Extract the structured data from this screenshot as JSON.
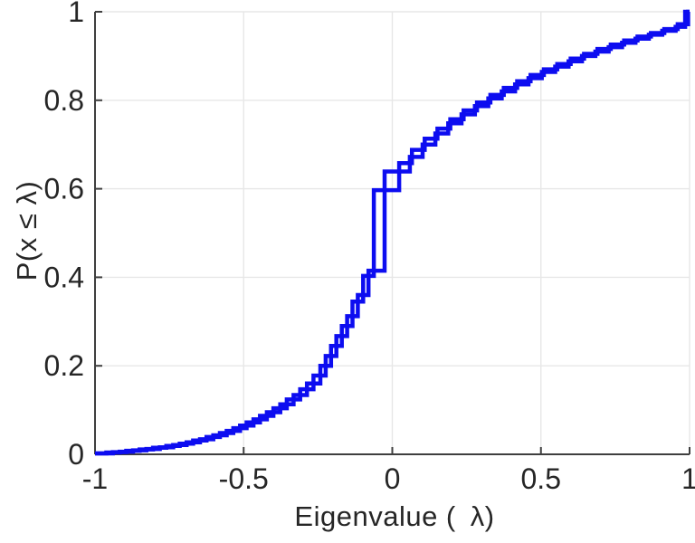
{
  "chart_data": {
    "type": "line",
    "subtype": "empirical-cdf-stairstep",
    "title": "",
    "xlabel": "Eigenvalue ( λ)",
    "ylabel": "P(x ≤ λ)",
    "xlim": [
      -1,
      1
    ],
    "ylim": [
      0,
      1
    ],
    "grid": true,
    "legend": "none",
    "x_ticks": [
      -1,
      -0.5,
      0,
      0.5,
      1
    ],
    "x_tick_labels": [
      "-1",
      "-0.5",
      "0",
      "0.5",
      "1"
    ],
    "y_ticks": [
      0,
      0.2,
      0.4,
      0.6,
      0.8,
      1
    ],
    "y_tick_labels": [
      "0",
      "0.2",
      "0.4",
      "0.6",
      "0.8",
      "1"
    ],
    "colors": {
      "line": "#0d0df0",
      "grid": "#e7e7e7",
      "axis": "#3f3f3f",
      "text": "#262626",
      "background": "#ffffff"
    },
    "series": [
      {
        "name": "cdf-series-1",
        "start": [
          -1,
          0.002
        ],
        "steps": [
          [
            -0.962,
            0.004
          ],
          [
            -0.917,
            0.006
          ],
          [
            -0.872,
            0.009
          ],
          [
            -0.827,
            0.012
          ],
          [
            -0.782,
            0.016
          ],
          [
            -0.737,
            0.021
          ],
          [
            -0.692,
            0.027
          ],
          [
            -0.647,
            0.034
          ],
          [
            -0.602,
            0.043
          ],
          [
            -0.557,
            0.053
          ],
          [
            -0.512,
            0.065
          ],
          [
            -0.467,
            0.079
          ],
          [
            -0.422,
            0.095
          ],
          [
            -0.377,
            0.113
          ],
          [
            -0.332,
            0.134
          ],
          [
            -0.287,
            0.16
          ],
          [
            -0.242,
            0.2
          ],
          [
            -0.206,
            0.245
          ],
          [
            -0.17,
            0.29
          ],
          [
            -0.134,
            0.345
          ],
          [
            -0.098,
            0.403
          ],
          [
            -0.062,
            0.597
          ],
          [
            0.023,
            0.658
          ],
          [
            0.066,
            0.688
          ],
          [
            0.109,
            0.713
          ],
          [
            0.152,
            0.736
          ],
          [
            0.195,
            0.757
          ],
          [
            0.24,
            0.777
          ],
          [
            0.285,
            0.795
          ],
          [
            0.33,
            0.812
          ],
          [
            0.375,
            0.828
          ],
          [
            0.42,
            0.843
          ],
          [
            0.465,
            0.857
          ],
          [
            0.51,
            0.87
          ],
          [
            0.555,
            0.882
          ],
          [
            0.6,
            0.894
          ],
          [
            0.645,
            0.905
          ],
          [
            0.69,
            0.916
          ],
          [
            0.735,
            0.926
          ],
          [
            0.78,
            0.935
          ],
          [
            0.825,
            0.944
          ],
          [
            0.87,
            0.952
          ],
          [
            0.915,
            0.961
          ],
          [
            0.96,
            0.972
          ],
          [
            0.995,
            1.0
          ]
        ]
      },
      {
        "name": "cdf-series-2",
        "start": [
          -1,
          0.002
        ],
        "steps": [
          [
            -0.94,
            0.005
          ],
          [
            -0.895,
            0.008
          ],
          [
            -0.85,
            0.011
          ],
          [
            -0.805,
            0.015
          ],
          [
            -0.76,
            0.019
          ],
          [
            -0.715,
            0.024
          ],
          [
            -0.67,
            0.031
          ],
          [
            -0.625,
            0.039
          ],
          [
            -0.58,
            0.048
          ],
          [
            -0.535,
            0.059
          ],
          [
            -0.49,
            0.072
          ],
          [
            -0.445,
            0.087
          ],
          [
            -0.4,
            0.104
          ],
          [
            -0.355,
            0.124
          ],
          [
            -0.31,
            0.147
          ],
          [
            -0.265,
            0.178
          ],
          [
            -0.224,
            0.222
          ],
          [
            -0.188,
            0.267
          ],
          [
            -0.152,
            0.312
          ],
          [
            -0.116,
            0.36
          ],
          [
            -0.08,
            0.415
          ],
          [
            -0.026,
            0.639
          ],
          [
            0.059,
            0.672
          ],
          [
            0.102,
            0.7
          ],
          [
            0.145,
            0.725
          ],
          [
            0.188,
            0.748
          ],
          [
            0.233,
            0.768
          ],
          [
            0.278,
            0.787
          ],
          [
            0.323,
            0.804
          ],
          [
            0.368,
            0.82
          ],
          [
            0.413,
            0.836
          ],
          [
            0.458,
            0.85
          ],
          [
            0.503,
            0.864
          ],
          [
            0.548,
            0.876
          ],
          [
            0.593,
            0.888
          ],
          [
            0.638,
            0.9
          ],
          [
            0.683,
            0.91
          ],
          [
            0.728,
            0.92
          ],
          [
            0.773,
            0.93
          ],
          [
            0.818,
            0.939
          ],
          [
            0.863,
            0.948
          ],
          [
            0.908,
            0.957
          ],
          [
            0.953,
            0.966
          ],
          [
            0.985,
            1.0
          ]
        ]
      }
    ]
  }
}
